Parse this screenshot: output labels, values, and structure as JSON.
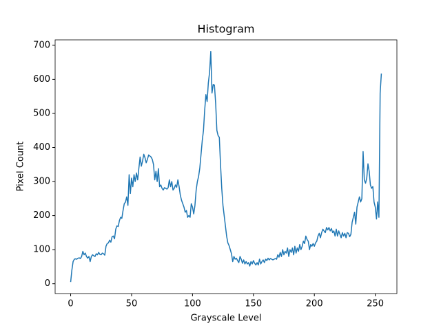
{
  "chart_data": {
    "type": "line",
    "title": "Histogram",
    "x_label": "Grayscale Level",
    "y_label": "Pixel Count",
    "x": [
      0,
      1,
      2,
      3,
      4,
      5,
      6,
      7,
      8,
      9,
      10,
      11,
      12,
      13,
      14,
      15,
      16,
      17,
      18,
      19,
      20,
      21,
      22,
      23,
      24,
      25,
      26,
      27,
      28,
      29,
      30,
      31,
      32,
      33,
      34,
      35,
      36,
      37,
      38,
      39,
      40,
      41,
      42,
      43,
      44,
      45,
      46,
      47,
      48,
      49,
      50,
      51,
      52,
      53,
      54,
      55,
      56,
      57,
      58,
      59,
      60,
      61,
      62,
      63,
      64,
      65,
      66,
      67,
      68,
      69,
      70,
      71,
      72,
      73,
      74,
      75,
      76,
      77,
      78,
      79,
      80,
      81,
      82,
      83,
      84,
      85,
      86,
      87,
      88,
      89,
      90,
      91,
      92,
      93,
      94,
      95,
      96,
      97,
      98,
      99,
      100,
      101,
      102,
      103,
      104,
      105,
      106,
      107,
      108,
      109,
      110,
      111,
      112,
      113,
      114,
      115,
      116,
      117,
      118,
      119,
      120,
      121,
      122,
      123,
      124,
      125,
      126,
      127,
      128,
      129,
      130,
      131,
      132,
      133,
      134,
      135,
      136,
      137,
      138,
      139,
      140,
      141,
      142,
      143,
      144,
      145,
      146,
      147,
      148,
      149,
      150,
      151,
      152,
      153,
      154,
      155,
      156,
      157,
      158,
      159,
      160,
      161,
      162,
      163,
      164,
      165,
      166,
      167,
      168,
      169,
      170,
      171,
      172,
      173,
      174,
      175,
      176,
      177,
      178,
      179,
      180,
      181,
      182,
      183,
      184,
      185,
      186,
      187,
      188,
      189,
      190,
      191,
      192,
      193,
      194,
      195,
      196,
      197,
      198,
      199,
      200,
      201,
      202,
      203,
      204,
      205,
      206,
      207,
      208,
      209,
      210,
      211,
      212,
      213,
      214,
      215,
      216,
      217,
      218,
      219,
      220,
      221,
      222,
      223,
      224,
      225,
      226,
      227,
      228,
      229,
      230,
      231,
      232,
      233,
      234,
      235,
      236,
      237,
      238,
      239,
      240,
      241,
      242,
      243,
      244,
      245,
      246,
      247,
      248,
      249,
      250,
      251,
      252,
      253,
      254,
      255
    ],
    "values": [
      5,
      40,
      65,
      72,
      73,
      72,
      75,
      76,
      74,
      80,
      95,
      85,
      90,
      80,
      75,
      80,
      65,
      80,
      85,
      82,
      80,
      88,
      85,
      92,
      86,
      85,
      90,
      88,
      84,
      110,
      118,
      120,
      128,
      122,
      138,
      140,
      132,
      160,
      170,
      168,
      185,
      195,
      192,
      215,
      235,
      240,
      255,
      230,
      320,
      265,
      310,
      285,
      320,
      300,
      325,
      305,
      340,
      372,
      345,
      360,
      380,
      370,
      355,
      365,
      378,
      375,
      372,
      365,
      350,
      305,
      330,
      300,
      338,
      285,
      290,
      280,
      275,
      282,
      280,
      278,
      282,
      305,
      285,
      300,
      275,
      280,
      290,
      283,
      305,
      285,
      260,
      245,
      235,
      225,
      210,
      215,
      195,
      200,
      195,
      235,
      225,
      205,
      230,
      275,
      300,
      315,
      340,
      380,
      420,
      450,
      510,
      555,
      535,
      590,
      620,
      682,
      560,
      585,
      583,
      530,
      450,
      435,
      430,
      350,
      280,
      230,
      200,
      170,
      140,
      120,
      112,
      100,
      88,
      65,
      80,
      72,
      75,
      68,
      62,
      80,
      72,
      60,
      70,
      58,
      65,
      58,
      62,
      52,
      65,
      58,
      68,
      60,
      55,
      62,
      55,
      72,
      58,
      65,
      70,
      62,
      72,
      68,
      75,
      70,
      74,
      72,
      70,
      72,
      74,
      72,
      85,
      78,
      92,
      80,
      100,
      85,
      95,
      90,
      105,
      80,
      100,
      92,
      105,
      85,
      110,
      90,
      105,
      95,
      115,
      100,
      110,
      125,
      118,
      140,
      130,
      125,
      100,
      115,
      110,
      118,
      110,
      120,
      125,
      140,
      148,
      135,
      150,
      160,
      155,
      150,
      165,
      158,
      165,
      155,
      162,
      150,
      155,
      140,
      160,
      140,
      155,
      145,
      135,
      150,
      140,
      148,
      135,
      150,
      148,
      138,
      145,
      180,
      195,
      210,
      175,
      225,
      240,
      255,
      240,
      250,
      388,
      305,
      295,
      310,
      352,
      330,
      290,
      280,
      285,
      240,
      225,
      190,
      240,
      195,
      560,
      617
    ],
    "color": "#1f77b4",
    "xlim": [
      -12.75,
      267.75
    ],
    "xticks": [
      0,
      50,
      100,
      150,
      200,
      250
    ],
    "ylim": [
      -28.85,
      715.85
    ],
    "yticks": [
      0,
      100,
      200,
      300,
      400,
      500,
      600,
      700
    ]
  }
}
